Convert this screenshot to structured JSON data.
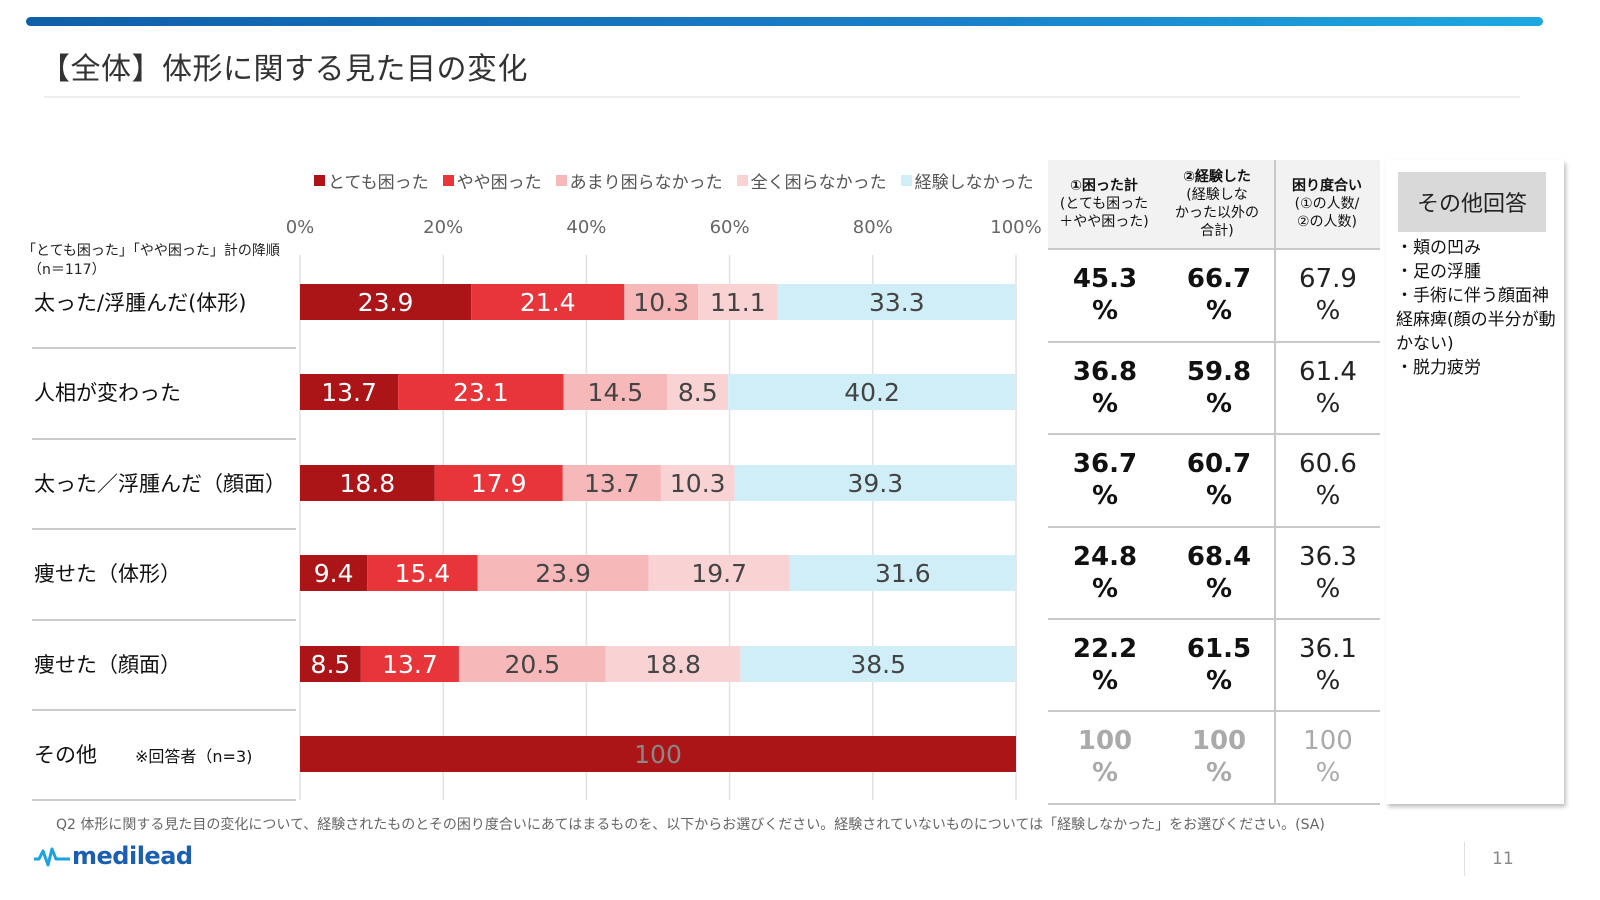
{
  "page": {
    "title": "【全体】体形に関する見た目の変化",
    "sort_note_line1": "「とても困った」「やや困った」計の降順",
    "sort_note_line2": "（n＝117）",
    "footnote": "Q2 体形に関する見た目の変化について、経験されたものとその困り度合いにあてはまるものを、以下からお選びください。経験されていないものについては「経験しなかった」をお選びください。(SA)",
    "logo_text": "medilead",
    "page_number": "11"
  },
  "chart_data": {
    "type": "bar",
    "orientation": "horizontal",
    "stacked": true,
    "xlim": [
      0,
      100
    ],
    "ticks": [
      "0%",
      "20%",
      "40%",
      "60%",
      "80%",
      "100%"
    ],
    "grid": true,
    "legend_position": "top",
    "categories": [
      "太った/浮腫んだ(体形)",
      "人相が変わった",
      "太った／浮腫んだ（顔面）",
      "痩せた（体形）",
      "痩せた（顔面）",
      "その他"
    ],
    "category_notes": [
      "",
      "",
      "",
      "",
      "",
      "※回答者（n=3)"
    ],
    "series": [
      {
        "name": "とても困った",
        "color": "#ac1518",
        "label_color": "#ffffff",
        "values": [
          23.9,
          13.7,
          18.8,
          9.4,
          8.5,
          100
        ]
      },
      {
        "name": "やや困った",
        "color": "#e8353a",
        "label_color": "#ffffff",
        "values": [
          21.4,
          23.1,
          17.9,
          15.4,
          13.7,
          0
        ]
      },
      {
        "name": "あまり困らなかった",
        "color": "#f7b8b9",
        "label_color": "#444444",
        "values": [
          10.3,
          14.5,
          13.7,
          23.9,
          20.5,
          0
        ]
      },
      {
        "name": "全く困らなかった",
        "color": "#f9d3d3",
        "label_color": "#444444",
        "values": [
          11.1,
          8.5,
          10.3,
          19.7,
          18.8,
          0
        ]
      },
      {
        "name": "経験しなかった",
        "color": "#d0eef8",
        "label_color": "#444444",
        "values": [
          33.3,
          40.2,
          39.3,
          31.6,
          38.5,
          0
        ]
      }
    ],
    "other_row_label_color": "#888888"
  },
  "table": {
    "headers": [
      {
        "title": "①困った計",
        "sub": [
          "(とても困った",
          "＋やや困った)"
        ]
      },
      {
        "title": "②経験した",
        "sub": [
          "(経験しな",
          "かった以外の",
          "合計)"
        ]
      },
      {
        "title": "困り度合い",
        "sub": [
          "(①の人数/",
          "②の人数)"
        ]
      }
    ],
    "rows": [
      {
        "trouble_total": "45.3",
        "experienced": "66.7",
        "degree": "67.9",
        "unit": "%"
      },
      {
        "trouble_total": "36.8",
        "experienced": "59.8",
        "degree": "61.4",
        "unit": "%"
      },
      {
        "trouble_total": "36.7",
        "experienced": "60.7",
        "degree": "60.6",
        "unit": "%"
      },
      {
        "trouble_total": "24.8",
        "experienced": "68.4",
        "degree": "36.3",
        "unit": "%"
      },
      {
        "trouble_total": "22.2",
        "experienced": "61.5",
        "degree": "36.1",
        "unit": "%"
      },
      {
        "trouble_total": "100",
        "experienced": "100",
        "degree": "100",
        "unit": "%"
      }
    ]
  },
  "other_answers": {
    "title": "その他回答",
    "items": [
      "・頬の凹み",
      "・足の浮腫",
      "・手術に伴う顔面神経麻痺(顔の半分が動かない)",
      "・脱力疲労"
    ]
  }
}
